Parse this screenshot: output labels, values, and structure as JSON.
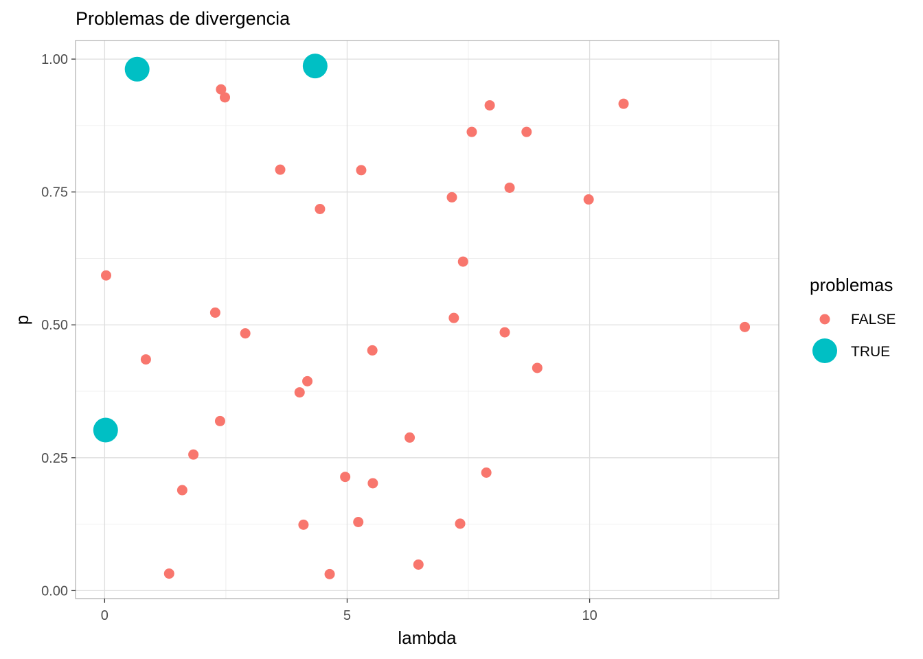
{
  "chart_data": {
    "type": "scatter",
    "title": "Problemas de divergencia",
    "xlabel": "lambda",
    "ylabel": "p",
    "xlim": [
      -0.6,
      13.9
    ],
    "ylim": [
      -0.015,
      1.035
    ],
    "x_ticks": [
      0,
      5,
      10
    ],
    "x_minor_ticks": [
      2.5,
      7.5,
      12.5
    ],
    "y_ticks": [
      0.0,
      0.25,
      0.5,
      0.75,
      1.0
    ],
    "y_tick_labels": [
      "0.00",
      "0.25",
      "0.50",
      "0.75",
      "1.00"
    ],
    "y_minor_ticks": [
      0.125,
      0.375,
      0.625,
      0.875
    ],
    "grid": true,
    "legend": {
      "title": "problemas",
      "placement": "right"
    },
    "series": [
      {
        "name": "FALSE",
        "color": "#F8766D",
        "points": [
          {
            "x": 2.4,
            "y": 0.943
          },
          {
            "x": 2.48,
            "y": 0.928
          },
          {
            "x": 7.94,
            "y": 0.913
          },
          {
            "x": 10.7,
            "y": 0.916
          },
          {
            "x": 7.57,
            "y": 0.863
          },
          {
            "x": 8.7,
            "y": 0.863
          },
          {
            "x": 3.62,
            "y": 0.792
          },
          {
            "x": 5.29,
            "y": 0.791
          },
          {
            "x": 8.35,
            "y": 0.758
          },
          {
            "x": 7.16,
            "y": 0.74
          },
          {
            "x": 9.98,
            "y": 0.736
          },
          {
            "x": 4.44,
            "y": 0.718
          },
          {
            "x": 7.39,
            "y": 0.619
          },
          {
            "x": 0.03,
            "y": 0.593
          },
          {
            "x": 2.28,
            "y": 0.523
          },
          {
            "x": 7.2,
            "y": 0.513
          },
          {
            "x": 13.2,
            "y": 0.496
          },
          {
            "x": 8.25,
            "y": 0.486
          },
          {
            "x": 2.9,
            "y": 0.484
          },
          {
            "x": 5.52,
            "y": 0.452
          },
          {
            "x": 0.85,
            "y": 0.435
          },
          {
            "x": 8.92,
            "y": 0.419
          },
          {
            "x": 4.18,
            "y": 0.394
          },
          {
            "x": 4.02,
            "y": 0.373
          },
          {
            "x": 2.38,
            "y": 0.319
          },
          {
            "x": 6.29,
            "y": 0.288
          },
          {
            "x": 1.83,
            "y": 0.256
          },
          {
            "x": 7.87,
            "y": 0.222
          },
          {
            "x": 4.96,
            "y": 0.214
          },
          {
            "x": 5.53,
            "y": 0.202
          },
          {
            "x": 1.6,
            "y": 0.189
          },
          {
            "x": 5.23,
            "y": 0.129
          },
          {
            "x": 4.1,
            "y": 0.124
          },
          {
            "x": 7.33,
            "y": 0.126
          },
          {
            "x": 6.47,
            "y": 0.049
          },
          {
            "x": 1.33,
            "y": 0.032
          },
          {
            "x": 4.64,
            "y": 0.031
          }
        ]
      },
      {
        "name": "TRUE",
        "color": "#00BFC4",
        "points": [
          {
            "x": 0.67,
            "y": 0.981
          },
          {
            "x": 4.34,
            "y": 0.987
          },
          {
            "x": 0.02,
            "y": 0.302
          }
        ]
      }
    ]
  }
}
